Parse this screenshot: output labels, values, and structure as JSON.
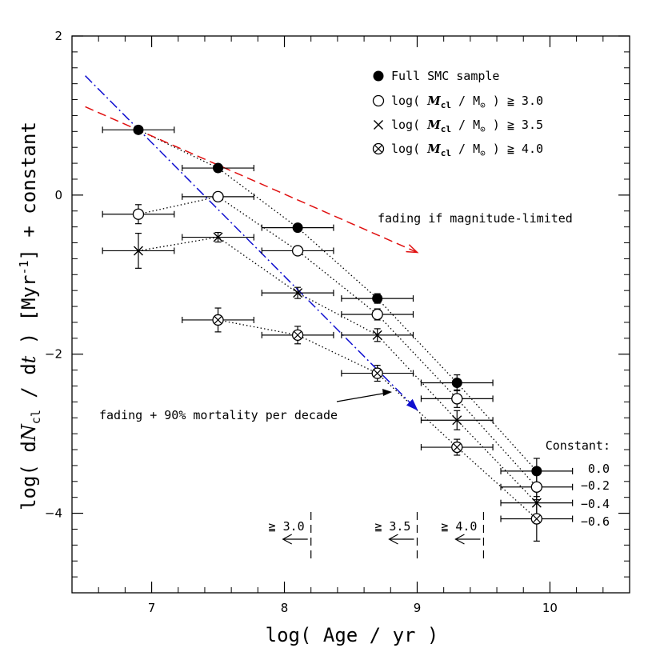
{
  "chart_data": {
    "type": "scatter",
    "xlabel": "log( Age / yr )",
    "ylabel": "log( dN_cl / dt ) [Myr⁻¹] + constant",
    "ylabel_parts": {
      "a": "log( d",
      "b": "N",
      "c": "cl",
      "d": " / d",
      "e": "t",
      "f": " ) [Myr",
      "g": "-1",
      "h": "] + constant"
    },
    "xlim": [
      6.4,
      10.6
    ],
    "ylim": [
      -5,
      2
    ],
    "xticks": [
      7,
      8,
      9,
      10
    ],
    "yticks": [
      2,
      0,
      -2,
      -4
    ],
    "xticks_minor": [
      6.4,
      6.6,
      6.8,
      7.2,
      7.4,
      7.6,
      7.8,
      8.2,
      8.4,
      8.6,
      8.8,
      9.2,
      9.4,
      9.6,
      9.8,
      10.2,
      10.4
    ],
    "yticks_minor": [
      -4.8,
      -4.6,
      -4.4,
      -4.2,
      -3.8,
      -3.6,
      -3.4,
      -3.2,
      -3.0,
      -2.8,
      -2.6,
      -2.4,
      -2.2,
      -1.8,
      -1.6,
      -1.4,
      -1.2,
      -1.0,
      -0.8,
      -0.6,
      -0.4,
      -0.2,
      0.2,
      0.4,
      0.6,
      0.8,
      1.0,
      1.2,
      1.4,
      1.6,
      1.8
    ],
    "series": [
      {
        "name": "Full SMC sample",
        "marker": "filled-circle",
        "constant": "0.0",
        "points": [
          {
            "x": 6.9,
            "y": 0.82,
            "xerr": 0.27,
            "yerr": 0.04
          },
          {
            "x": 7.5,
            "y": 0.34,
            "xerr": 0.27,
            "yerr": 0.04
          },
          {
            "x": 8.1,
            "y": -0.41,
            "xerr": 0.27,
            "yerr": 0.04
          },
          {
            "x": 8.7,
            "y": -1.3,
            "xerr": 0.27,
            "yerr": 0.06
          },
          {
            "x": 9.3,
            "y": -2.36,
            "xerr": 0.27,
            "yerr": 0.1
          },
          {
            "x": 9.9,
            "y": -3.47,
            "xerr": 0.27,
            "yerr": 0.16
          }
        ]
      },
      {
        "name": "log( M_cl / M_⊙ ) ≧ 3.0",
        "marker": "open-circle",
        "constant": "−0.2",
        "points": [
          {
            "x": 6.9,
            "y": -0.24,
            "xerr": 0.27,
            "yerr": 0.12
          },
          {
            "x": 7.5,
            "y": -0.02,
            "xerr": 0.27,
            "yerr": 0.04
          },
          {
            "x": 8.1,
            "y": -0.7,
            "xerr": 0.27,
            "yerr": 0.04
          },
          {
            "x": 8.7,
            "y": -1.5,
            "xerr": 0.27,
            "yerr": 0.07
          },
          {
            "x": 9.3,
            "y": -2.56,
            "xerr": 0.27,
            "yerr": 0.11
          },
          {
            "x": 9.9,
            "y": -3.67,
            "xerr": 0.27,
            "yerr": 0.16
          }
        ]
      },
      {
        "name": "log( M_cl / M_⊙ ) ≧ 3.5",
        "marker": "cross",
        "constant": "−0.4",
        "points": [
          {
            "x": 6.9,
            "y": -0.7,
            "xerr": 0.27,
            "yerr": 0.22
          },
          {
            "x": 7.5,
            "y": -0.53,
            "xerr": 0.27,
            "yerr": 0.06
          },
          {
            "x": 8.1,
            "y": -1.23,
            "xerr": 0.27,
            "yerr": 0.07
          },
          {
            "x": 8.7,
            "y": -1.76,
            "xerr": 0.27,
            "yerr": 0.08
          },
          {
            "x": 9.3,
            "y": -2.83,
            "xerr": 0.27,
            "yerr": 0.12
          },
          {
            "x": 9.9,
            "y": -3.87,
            "xerr": 0.27,
            "yerr": 0.16
          }
        ]
      },
      {
        "name": "log( M_cl / M_⊙ ) ≧ 4.0",
        "marker": "circled-cross",
        "constant": "−0.6",
        "points": [
          {
            "x": 7.5,
            "y": -1.57,
            "xerr": 0.27,
            "yerr": 0.15
          },
          {
            "x": 8.1,
            "y": -1.76,
            "xerr": 0.27,
            "yerr": 0.11
          },
          {
            "x": 8.7,
            "y": -2.24,
            "xerr": 0.27,
            "yerr": 0.1
          },
          {
            "x": 9.3,
            "y": -3.17,
            "xerr": 0.27,
            "yerr": 0.1
          },
          {
            "x": 9.9,
            "y": -4.07,
            "xerr": 0.27,
            "yerr": 0.28
          }
        ]
      }
    ],
    "model_lines": [
      {
        "label": "fading if magnitude-limited",
        "color": "#e01010",
        "style": "dashed",
        "points": [
          [
            6.5,
            1.11
          ],
          [
            9.0,
            -0.72
          ]
        ]
      },
      {
        "label": "fading + 90% mortality per decade",
        "color": "#1010d0",
        "style": "dash-dot",
        "points": [
          [
            6.5,
            1.5
          ],
          [
            9.0,
            -2.7
          ]
        ]
      }
    ],
    "limits": [
      {
        "label": "≧ 3.0",
        "x": 8.2
      },
      {
        "label": "≧ 3.5",
        "x": 9.0
      },
      {
        "label": "≧ 4.0",
        "x": 9.5
      }
    ],
    "constant_title": "Constant:",
    "legend_position": "top-right",
    "grid": false
  }
}
